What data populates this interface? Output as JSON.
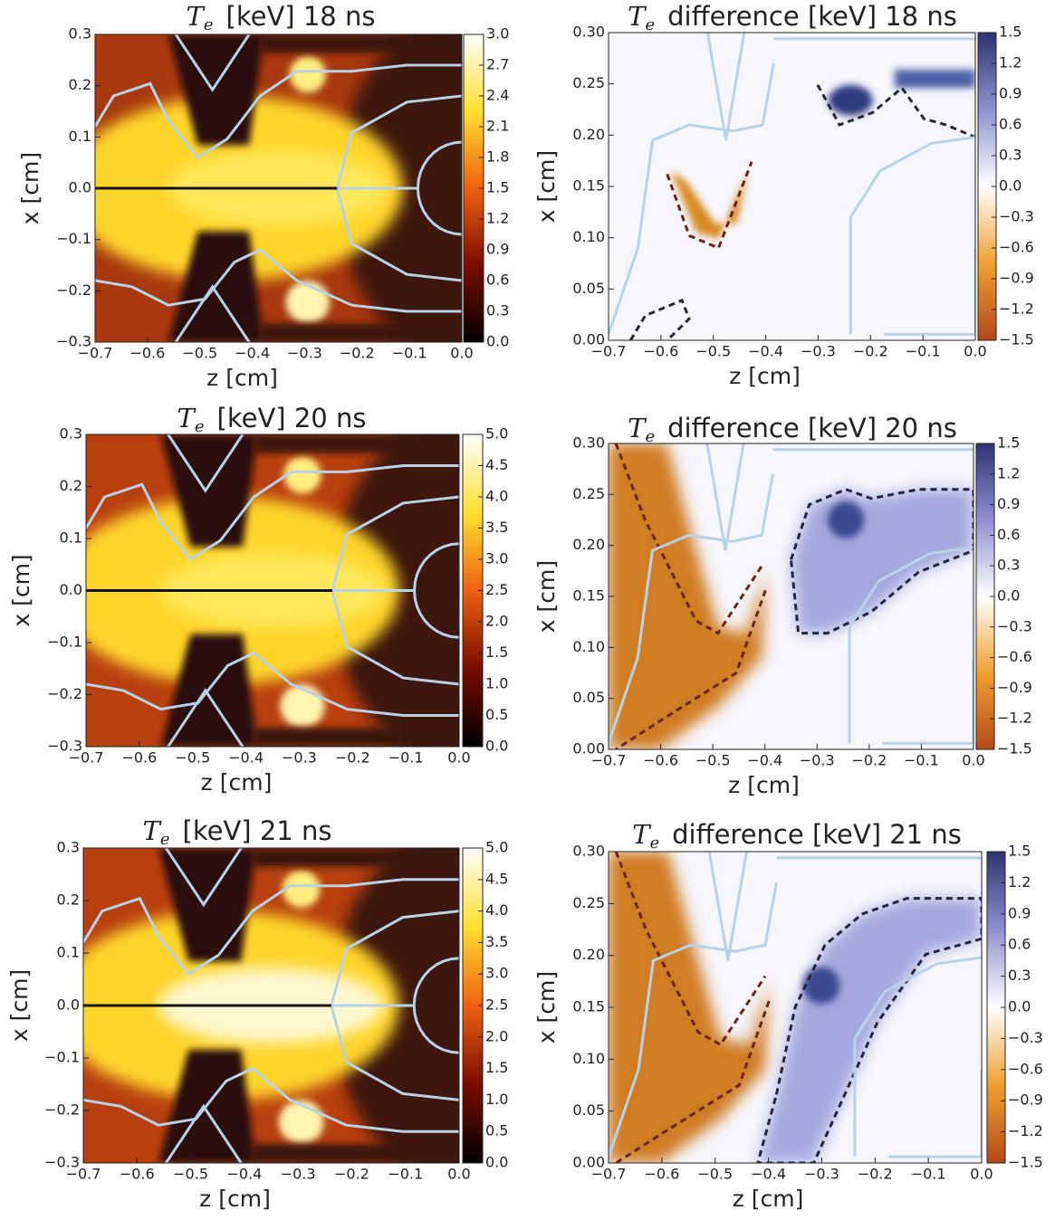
{
  "chart_data": [
    {
      "type": "heatmap",
      "title": {
        "symbol": "T",
        "subscript": "e",
        "text": "[keV]   18 ns"
      },
      "xlabel": "z  [cm]",
      "ylabel": "x  [cm]",
      "xlim": [
        -0.7,
        0.0
      ],
      "ylim": [
        -0.3,
        0.3
      ],
      "xticks": [
        {
          "value": -0.7,
          "label": "−0.7"
        },
        {
          "value": -0.6,
          "label": "−0.6"
        },
        {
          "value": -0.5,
          "label": "−0.5"
        },
        {
          "value": -0.4,
          "label": "−0.4"
        },
        {
          "value": -0.3,
          "label": "−0.3"
        },
        {
          "value": -0.2,
          "label": "−0.2"
        },
        {
          "value": -0.1,
          "label": "−0.1"
        },
        {
          "value": 0.0,
          "label": "0.0"
        }
      ],
      "yticks": [
        {
          "value": -0.3,
          "label": "−0.3"
        },
        {
          "value": -0.2,
          "label": "−0.2"
        },
        {
          "value": -0.1,
          "label": "−0.1"
        },
        {
          "value": 0.0,
          "label": "0.0"
        },
        0.1,
        0.2,
        0.3
      ],
      "colorbar_lim": [
        0.0,
        3.0
      ],
      "colorbar_ticks": [
        {
          "value": 0.0,
          "label": "0.0"
        },
        0.3,
        0.6,
        0.9,
        1.2,
        1.5,
        1.8,
        2.1,
        2.4,
        2.7,
        {
          "value": 3.0,
          "label": "3.0"
        }
      ],
      "colormap": "afmhot"
    },
    {
      "type": "heatmap",
      "title": {
        "symbol": "T",
        "subscript": "e",
        "text": "difference  [keV]   18 ns"
      },
      "xlabel": "z  [cm]",
      "ylabel": "x  [cm]",
      "xlim": [
        -0.7,
        0.0
      ],
      "ylim": [
        0.0,
        0.3
      ],
      "xticks": [
        {
          "value": -0.7,
          "label": "−0.7"
        },
        {
          "value": -0.6,
          "label": "−0.6"
        },
        {
          "value": -0.5,
          "label": "−0.5"
        },
        {
          "value": -0.4,
          "label": "−0.4"
        },
        {
          "value": -0.3,
          "label": "−0.3"
        },
        {
          "value": -0.2,
          "label": "−0.2"
        },
        {
          "value": -0.1,
          "label": "−0.1"
        },
        {
          "value": 0.0,
          "label": "0.0"
        }
      ],
      "yticks": [
        {
          "value": 0.0,
          "label": "0.00"
        },
        0.05,
        {
          "value": 0.1,
          "label": "0.10"
        },
        0.15,
        {
          "value": 0.2,
          "label": "0.20"
        },
        0.25,
        {
          "value": 0.3,
          "label": "0.30"
        }
      ],
      "colorbar_lim": [
        -1.5,
        1.5
      ],
      "colorbar_ticks": [
        {
          "value": -1.5,
          "label": "−1.5"
        },
        {
          "value": -1.2,
          "label": "−1.2"
        },
        {
          "value": -0.9,
          "label": "−0.9"
        },
        {
          "value": -0.6,
          "label": "−0.6"
        },
        {
          "value": -0.3,
          "label": "−0.3"
        },
        {
          "value": 0.0,
          "label": "0.0"
        },
        0.3,
        0.6,
        0.9,
        1.2,
        1.5
      ],
      "colormap": "diverging"
    },
    {
      "type": "heatmap",
      "title": {
        "symbol": "T",
        "subscript": "e",
        "text": "[keV]   20 ns"
      },
      "xlabel": "z  [cm]",
      "ylabel": "x  [cm]",
      "xlim": [
        -0.7,
        0.0
      ],
      "ylim": [
        -0.3,
        0.3
      ],
      "xticks": [
        {
          "value": -0.7,
          "label": "−0.7"
        },
        {
          "value": -0.6,
          "label": "−0.6"
        },
        {
          "value": -0.5,
          "label": "−0.5"
        },
        {
          "value": -0.4,
          "label": "−0.4"
        },
        {
          "value": -0.3,
          "label": "−0.3"
        },
        {
          "value": -0.2,
          "label": "−0.2"
        },
        {
          "value": -0.1,
          "label": "−0.1"
        },
        {
          "value": 0.0,
          "label": "0.0"
        }
      ],
      "yticks": [
        {
          "value": -0.3,
          "label": "−0.3"
        },
        {
          "value": -0.2,
          "label": "−0.2"
        },
        {
          "value": -0.1,
          "label": "−0.1"
        },
        {
          "value": 0.0,
          "label": "0.0"
        },
        0.1,
        0.2,
        0.3
      ],
      "colorbar_lim": [
        0.0,
        5.0
      ],
      "colorbar_ticks": [
        {
          "value": 0.0,
          "label": "0.0"
        },
        0.5,
        {
          "value": 1.0,
          "label": "1.0"
        },
        1.5,
        {
          "value": 2.0,
          "label": "2.0"
        },
        2.5,
        {
          "value": 3.0,
          "label": "3.0"
        },
        3.5,
        {
          "value": 4.0,
          "label": "4.0"
        },
        4.5,
        {
          "value": 5.0,
          "label": "5.0"
        }
      ],
      "colormap": "afmhot"
    },
    {
      "type": "heatmap",
      "title": {
        "symbol": "T",
        "subscript": "e",
        "text": "difference  [keV]   20 ns"
      },
      "xlabel": "z  [cm]",
      "ylabel": "x  [cm]",
      "xlim": [
        -0.7,
        0.0
      ],
      "ylim": [
        0.0,
        0.3
      ],
      "xticks": [
        {
          "value": -0.7,
          "label": "−0.7"
        },
        {
          "value": -0.6,
          "label": "−0.6"
        },
        {
          "value": -0.5,
          "label": "−0.5"
        },
        {
          "value": -0.4,
          "label": "−0.4"
        },
        {
          "value": -0.3,
          "label": "−0.3"
        },
        {
          "value": -0.2,
          "label": "−0.2"
        },
        {
          "value": -0.1,
          "label": "−0.1"
        },
        {
          "value": 0.0,
          "label": "0.0"
        }
      ],
      "yticks": [
        {
          "value": 0.0,
          "label": "0.00"
        },
        0.05,
        {
          "value": 0.1,
          "label": "0.10"
        },
        0.15,
        {
          "value": 0.2,
          "label": "0.20"
        },
        0.25,
        {
          "value": 0.3,
          "label": "0.30"
        }
      ],
      "colorbar_lim": [
        -1.5,
        1.5
      ],
      "colorbar_ticks": [
        {
          "value": -1.5,
          "label": "−1.5"
        },
        {
          "value": -1.2,
          "label": "−1.2"
        },
        {
          "value": -0.9,
          "label": "−0.9"
        },
        {
          "value": -0.6,
          "label": "−0.6"
        },
        {
          "value": -0.3,
          "label": "−0.3"
        },
        {
          "value": 0.0,
          "label": "0.0"
        },
        0.3,
        0.6,
        0.9,
        1.2,
        1.5
      ],
      "colormap": "diverging"
    },
    {
      "type": "heatmap",
      "title": {
        "symbol": "T",
        "subscript": "e",
        "text": "[keV]   21 ns"
      },
      "xlabel": "z  [cm]",
      "ylabel": "x  [cm]",
      "xlim": [
        -0.7,
        0.0
      ],
      "ylim": [
        -0.3,
        0.3
      ],
      "xticks": [
        {
          "value": -0.7,
          "label": "−0.7"
        },
        {
          "value": -0.6,
          "label": "−0.6"
        },
        {
          "value": -0.5,
          "label": "−0.5"
        },
        {
          "value": -0.4,
          "label": "−0.4"
        },
        {
          "value": -0.3,
          "label": "−0.3"
        },
        {
          "value": -0.2,
          "label": "−0.2"
        },
        {
          "value": -0.1,
          "label": "−0.1"
        },
        {
          "value": 0.0,
          "label": "0.0"
        }
      ],
      "yticks": [
        {
          "value": -0.3,
          "label": "−0.3"
        },
        {
          "value": -0.2,
          "label": "−0.2"
        },
        {
          "value": -0.1,
          "label": "−0.1"
        },
        {
          "value": 0.0,
          "label": "0.0"
        },
        0.1,
        0.2,
        0.3
      ],
      "colorbar_lim": [
        0.0,
        5.0
      ],
      "colorbar_ticks": [
        {
          "value": 0.0,
          "label": "0.0"
        },
        0.5,
        {
          "value": 1.0,
          "label": "1.0"
        },
        1.5,
        {
          "value": 2.0,
          "label": "2.0"
        },
        2.5,
        {
          "value": 3.0,
          "label": "3.0"
        },
        3.5,
        {
          "value": 4.0,
          "label": "4.0"
        },
        4.5,
        {
          "value": 5.0,
          "label": "5.0"
        }
      ],
      "colormap": "afmhot"
    },
    {
      "type": "heatmap",
      "title": {
        "symbol": "T",
        "subscript": "e",
        "text": "difference  [keV]   21 ns"
      },
      "xlabel": "z  [cm]",
      "ylabel": "x  [cm]",
      "xlim": [
        -0.7,
        0.0
      ],
      "ylim": [
        0.0,
        0.3
      ],
      "xticks": [
        {
          "value": -0.7,
          "label": "−0.7"
        },
        {
          "value": -0.6,
          "label": "−0.6"
        },
        {
          "value": -0.5,
          "label": "−0.5"
        },
        {
          "value": -0.4,
          "label": "−0.4"
        },
        {
          "value": -0.3,
          "label": "−0.3"
        },
        {
          "value": -0.2,
          "label": "−0.2"
        },
        {
          "value": -0.1,
          "label": "−0.1"
        },
        {
          "value": 0.0,
          "label": "0.0"
        }
      ],
      "yticks": [
        {
          "value": 0.0,
          "label": "0.00"
        },
        0.05,
        {
          "value": 0.1,
          "label": "0.10"
        },
        0.15,
        {
          "value": 0.2,
          "label": "0.20"
        },
        0.25,
        {
          "value": 0.3,
          "label": "0.30"
        }
      ],
      "colorbar_lim": [
        -1.5,
        1.5
      ],
      "colorbar_ticks": [
        {
          "value": -1.5,
          "label": "−1.5"
        },
        {
          "value": -1.2,
          "label": "−1.2"
        },
        {
          "value": -0.9,
          "label": "−0.9"
        },
        {
          "value": -0.6,
          "label": "−0.6"
        },
        {
          "value": -0.3,
          "label": "−0.3"
        },
        {
          "value": 0.0,
          "label": "0.0"
        },
        0.3,
        0.6,
        0.9,
        1.2,
        1.5
      ],
      "colormap": "diverging"
    }
  ]
}
